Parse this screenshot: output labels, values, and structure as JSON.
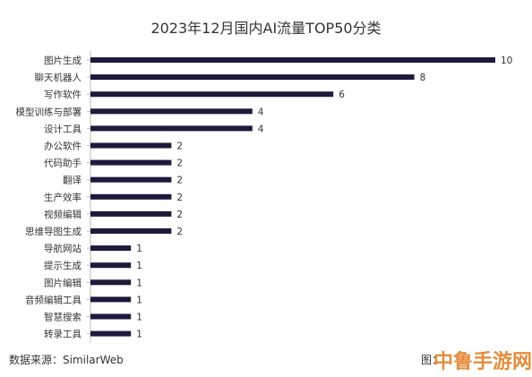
{
  "chart_data": {
    "type": "bar",
    "orientation": "horizontal",
    "title": "2023年12月国内AI流量TOP50分类",
    "categories": [
      "图片生成",
      "聊天机器人",
      "写作软件",
      "模型训练与部署",
      "设计工具",
      "办公软件",
      "代码助手",
      "翻译",
      "生产效率",
      "视频编辑",
      "思维导图生成",
      "导航网站",
      "提示生成",
      "图片编辑",
      "音频编辑工具",
      "智慧搜索",
      "转录工具"
    ],
    "values": [
      10,
      8,
      6,
      4,
      4,
      2,
      2,
      2,
      2,
      2,
      2,
      1,
      1,
      1,
      1,
      1,
      1
    ],
    "xlim": [
      0,
      10
    ],
    "grid": false,
    "bar_color": "#1e1a3c"
  },
  "footer": {
    "source": "数据来源：SimilarWeb",
    "credit": "图："
  },
  "watermark": "中鲁手游网"
}
